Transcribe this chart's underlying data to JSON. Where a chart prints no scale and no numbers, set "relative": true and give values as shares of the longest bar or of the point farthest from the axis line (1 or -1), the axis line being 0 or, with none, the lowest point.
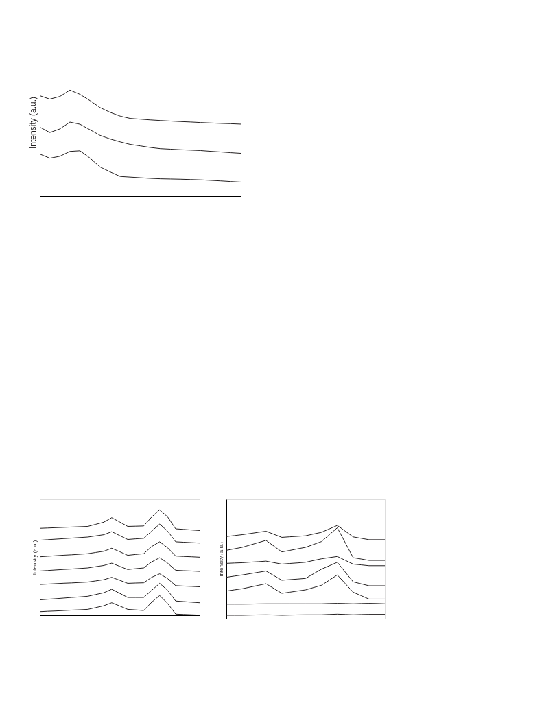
{
  "chart_data": [
    {
      "type": "line",
      "ylabel": "Intensity (a.u.)",
      "relative": true,
      "tick_labels": false,
      "grid": false,
      "categories": [
        null,
        null,
        null,
        null,
        null,
        null,
        null,
        null,
        null,
        null,
        null,
        null,
        null,
        null,
        null,
        null,
        null,
        null,
        null,
        null,
        null
      ],
      "series": [
        {
          "color": "#231f20",
          "values": [
            0.947,
            0.915,
            0.94,
            1,
            0.96,
            0.9,
            0.835,
            0.79,
            0.755,
            0.733,
            0.726,
            0.719,
            0.713,
            0.708,
            0.703,
            0.699,
            0.694,
            0.69,
            0.686,
            0.683,
            0.679
          ]
        },
        {
          "color": "#231f20",
          "values": [
            0.651,
            0.6,
            0.634,
            0.698,
            0.678,
            0.626,
            0.573,
            0.539,
            0.512,
            0.488,
            0.474,
            0.459,
            0.448,
            0.443,
            0.438,
            0.434,
            0.43,
            0.423,
            0.417,
            0.41,
            0.404
          ]
        },
        {
          "color": "#231f20",
          "values": [
            0.397,
            0.358,
            0.376,
            0.422,
            0.428,
            0.359,
            0.275,
            0.229,
            0.186,
            0.18,
            0.174,
            0.168,
            0.164,
            0.162,
            0.16,
            0.157,
            0.154,
            0.149,
            0.144,
            0.138,
            0.133
          ]
        }
      ]
    },
    {
      "type": "line",
      "ylabel": "Intensity (a.u.)",
      "relative": true,
      "tick_labels": false,
      "grid": false,
      "categories": [
        null,
        null,
        null,
        null,
        null,
        null,
        null,
        null,
        null,
        null,
        null,
        null,
        null,
        null,
        null,
        null,
        null,
        null,
        null,
        null,
        null
      ],
      "series": [
        {
          "color": "#231f20",
          "values": [
            0.825,
            0.828,
            0.831,
            0.834,
            0.837,
            0.84,
            0.843,
            0.863,
            0.883,
            0.926,
            0.885,
            0.843,
            0.845,
            0.847,
            0.933,
            1,
            0.933,
            0.82,
            0.815,
            0.809,
            0.804
          ]
        },
        {
          "color": "#231f20",
          "values": [
            0.712,
            0.717,
            0.722,
            0.727,
            0.732,
            0.737,
            0.742,
            0.753,
            0.764,
            0.793,
            0.756,
            0.719,
            0.725,
            0.73,
            0.798,
            0.865,
            0.798,
            0.697,
            0.693,
            0.689,
            0.685
          ]
        },
        {
          "color": "#231f20",
          "values": [
            0.555,
            0.56,
            0.565,
            0.57,
            0.574,
            0.579,
            0.584,
            0.596,
            0.607,
            0.636,
            0.603,
            0.569,
            0.577,
            0.584,
            0.652,
            0.697,
            0.64,
            0.562,
            0.558,
            0.555,
            0.551
          ]
        },
        {
          "color": "#231f20",
          "values": [
            0.42,
            0.425,
            0.43,
            0.435,
            0.439,
            0.444,
            0.449,
            0.461,
            0.472,
            0.494,
            0.464,
            0.434,
            0.442,
            0.449,
            0.506,
            0.546,
            0.494,
            0.427,
            0.423,
            0.42,
            0.416
          ]
        },
        {
          "color": "#231f20",
          "values": [
            0.292,
            0.296,
            0.3,
            0.304,
            0.307,
            0.311,
            0.315,
            0.326,
            0.337,
            0.36,
            0.332,
            0.303,
            0.306,
            0.308,
            0.36,
            0.393,
            0.348,
            0.281,
            0.277,
            0.274,
            0.27
          ]
        },
        {
          "color": "#231f20",
          "values": [
            0.146,
            0.152,
            0.157,
            0.163,
            0.169,
            0.174,
            0.18,
            0.197,
            0.213,
            0.247,
            0.208,
            0.169,
            0.169,
            0.169,
            0.236,
            0.303,
            0.236,
            0.135,
            0.13,
            0.124,
            0.119
          ]
        },
        {
          "color": "#231f20",
          "values": [
            0.034,
            0.038,
            0.041,
            0.045,
            0.049,
            0.052,
            0.056,
            0.073,
            0.09,
            0.119,
            0.088,
            0.056,
            0.051,
            0.045,
            0.124,
            0.187,
            0.112,
            0.011,
            0.008,
            0.005,
            0.002
          ]
        }
      ]
    },
    {
      "type": "line",
      "ylabel": "Intensity (a.u.)",
      "relative": true,
      "tick_labels": false,
      "grid": false,
      "categories": [
        null,
        null,
        null,
        null,
        null,
        null,
        null,
        null,
        null,
        null,
        null,
        null,
        null,
        null,
        null,
        null,
        null,
        null,
        null,
        null,
        null
      ],
      "series": [
        {
          "color": "#231f20",
          "values": [
            0.881,
            0.891,
            0.901,
            0.913,
            0.926,
            0.938,
            0.905,
            0.872,
            0.878,
            0.883,
            0.889,
            0.908,
            0.926,
            0.963,
            1,
            0.939,
            0.877,
            0.862,
            0.847,
            0.847,
            0.847
          ]
        },
        {
          "color": "#231f20",
          "values": [
            0.733,
            0.749,
            0.765,
            0.79,
            0.815,
            0.84,
            0.778,
            0.716,
            0.732,
            0.749,
            0.765,
            0.796,
            0.827,
            0.901,
            0.975,
            0.815,
            0.654,
            0.64,
            0.625,
            0.625,
            0.625
          ]
        },
        {
          "color": "#231f20",
          "values": [
            0.593,
            0.597,
            0.6,
            0.606,
            0.611,
            0.617,
            0.601,
            0.585,
            0.592,
            0.598,
            0.605,
            0.624,
            0.642,
            0.655,
            0.667,
            0.626,
            0.585,
            0.577,
            0.568,
            0.568,
            0.568
          ]
        },
        {
          "color": "#231f20",
          "values": [
            0.444,
            0.457,
            0.469,
            0.483,
            0.497,
            0.511,
            0.462,
            0.412,
            0.419,
            0.425,
            0.432,
            0.482,
            0.531,
            0.568,
            0.605,
            0.5,
            0.395,
            0.374,
            0.353,
            0.353,
            0.353
          ]
        },
        {
          "color": "#231f20",
          "values": [
            0.296,
            0.309,
            0.321,
            0.339,
            0.357,
            0.375,
            0.324,
            0.272,
            0.284,
            0.297,
            0.309,
            0.334,
            0.358,
            0.414,
            0.469,
            0.377,
            0.284,
            0.247,
            0.21,
            0.21,
            0.21
          ]
        },
        {
          "color": "#231f20",
          "values": [
            0.156,
            0.156,
            0.156,
            0.157,
            0.159,
            0.16,
            0.16,
            0.16,
            0.16,
            0.16,
            0.16,
            0.16,
            0.16,
            0.163,
            0.165,
            0.163,
            0.16,
            0.163,
            0.165,
            0.163,
            0.16
          ]
        },
        {
          "color": "#231f20",
          "values": [
            0.037,
            0.037,
            0.037,
            0.039,
            0.041,
            0.042,
            0.04,
            0.037,
            0.039,
            0.041,
            0.042,
            0.042,
            0.042,
            0.046,
            0.049,
            0.046,
            0.042,
            0.045,
            0.047,
            0.047,
            0.047
          ]
        }
      ]
    }
  ]
}
